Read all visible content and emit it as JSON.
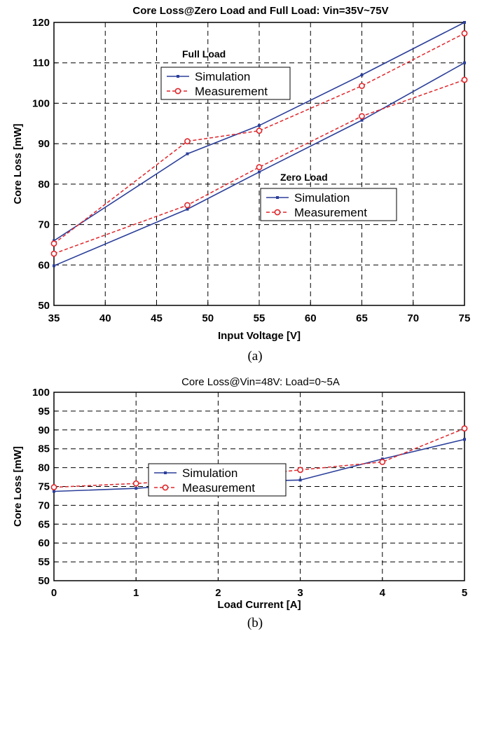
{
  "colors": {
    "simulation": "#2b3f9a",
    "measurement": "#e0262b"
  },
  "chart_data": [
    {
      "type": "line",
      "title": "Core Loss@Zero Load and Full Load: Vin=35V~75V",
      "xlabel": "Input Voltage [V]",
      "ylabel": "Core Loss [mW]",
      "caption": "(a)",
      "xlim": [
        35,
        75
      ],
      "ylim": [
        50,
        120
      ],
      "xticks": [
        35,
        40,
        45,
        50,
        55,
        60,
        65,
        70,
        75
      ],
      "yticks": [
        50,
        60,
        70,
        80,
        90,
        100,
        110,
        120
      ],
      "grid": true,
      "groups": [
        {
          "label": "Full Load",
          "legend_position": "upper-left",
          "series": [
            {
              "name": "Simulation",
              "x": [
                35,
                48,
                55,
                65,
                75
              ],
              "y": [
                66,
                87.5,
                94.5,
                107,
                120
              ]
            },
            {
              "name": "Measurement",
              "x": [
                35,
                48,
                55,
                65,
                75
              ],
              "y": [
                65.3,
                90.6,
                93.2,
                104.3,
                117.3
              ]
            }
          ]
        },
        {
          "label": "Zero Load",
          "legend_position": "center-right",
          "series": [
            {
              "name": "Simulation",
              "x": [
                35,
                48,
                55,
                65,
                75
              ],
              "y": [
                59.8,
                73.8,
                83,
                95.8,
                110
              ]
            },
            {
              "name": "Measurement",
              "x": [
                35,
                48,
                55,
                65,
                75
              ],
              "y": [
                62.8,
                74.8,
                84.2,
                96.8,
                105.8
              ]
            }
          ]
        }
      ]
    },
    {
      "type": "line",
      "title": "Core Loss@Vin=48V: Load=0~5A",
      "xlabel": "Load Current [A]",
      "ylabel": "Core Loss [mW]",
      "caption": "(b)",
      "xlim": [
        0,
        5
      ],
      "ylim": [
        50,
        100
      ],
      "xticks": [
        0,
        1,
        2,
        3,
        4,
        5
      ],
      "yticks": [
        50,
        55,
        60,
        65,
        70,
        75,
        80,
        85,
        90,
        95,
        100
      ],
      "grid": true,
      "legend_position": "center-left",
      "series": [
        {
          "name": "Simulation",
          "x": [
            0,
            1,
            2,
            3,
            4,
            5
          ],
          "y": [
            73.7,
            74.5,
            76.2,
            76.7,
            82.3,
            87.5
          ]
        },
        {
          "name": "Measurement",
          "x": [
            0,
            1,
            2,
            3,
            4,
            5
          ],
          "y": [
            74.8,
            75.8,
            77.2,
            79.4,
            81.5,
            90.4
          ]
        }
      ]
    }
  ]
}
